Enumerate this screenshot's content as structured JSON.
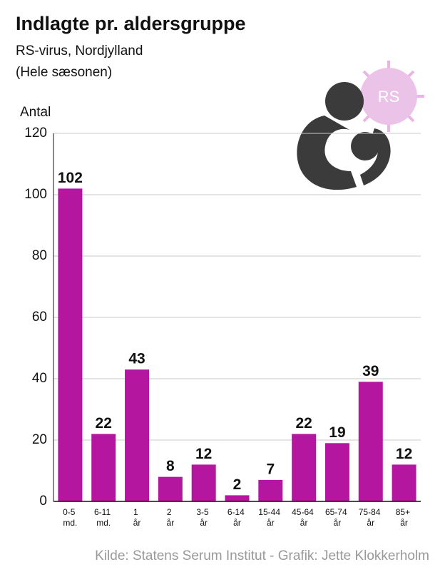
{
  "chart_data": {
    "type": "bar",
    "title": "Indlagte pr. aldersgruppe",
    "subtitle": [
      "RS-virus, Nordjylland",
      "(Hele sæsonen)"
    ],
    "y_label": "Antal",
    "icon_label": "RS",
    "source": "Kilde: Statens Serum Institut -  Grafik: Jette Klokkerholm",
    "categories": [
      "0-5 md.",
      "6-11 md.",
      "1 år",
      "2 år",
      "3-5 år",
      "6-14 år",
      "15-44 år",
      "45-64 år",
      "65-74 år",
      "75-84 år",
      "85+ år"
    ],
    "values": [
      102,
      22,
      43,
      8,
      12,
      2,
      7,
      22,
      19,
      39,
      12
    ],
    "color": "#b4169f",
    "ylim": [
      0,
      120
    ],
    "yticks": [
      0,
      20,
      40,
      60,
      80,
      100,
      120
    ],
    "grid": true
  }
}
